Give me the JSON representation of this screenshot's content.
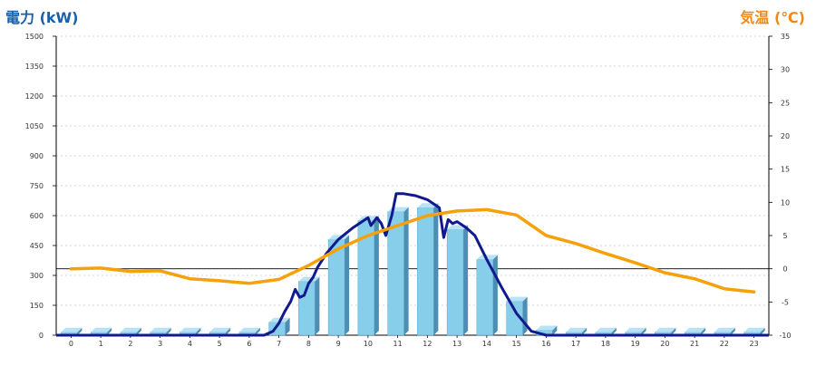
{
  "chart_data": {
    "type": "bar",
    "title": "",
    "y_left_label": "電力 (kW)",
    "y_right_label": "気温 (℃)",
    "categories": [
      "0",
      "1",
      "2",
      "3",
      "4",
      "5",
      "6",
      "7",
      "8",
      "9",
      "10",
      "11",
      "12",
      "13",
      "14",
      "15",
      "16",
      "17",
      "18",
      "19",
      "20",
      "21",
      "22",
      "23"
    ],
    "y_left_ticks": [
      "0",
      "150",
      "300",
      "450",
      "600",
      "750",
      "900",
      "1050",
      "1200",
      "1350",
      "1500"
    ],
    "y_right_ticks": [
      "-10",
      "-5",
      "0",
      "5",
      "10",
      "15",
      "20",
      "25",
      "30",
      "35"
    ],
    "y_left_range": [
      0,
      1500
    ],
    "y_right_range": [
      -10,
      35
    ],
    "grid": "horizontal-dashed",
    "series": [
      {
        "kind": "bar",
        "axis": "left",
        "color": "#87ceeb",
        "values": [
          15,
          15,
          15,
          15,
          15,
          15,
          15,
          65,
          270,
          480,
          575,
          620,
          640,
          530,
          380,
          170,
          25,
          15,
          15,
          15,
          15,
          15,
          15,
          15
        ]
      },
      {
        "kind": "line",
        "axis": "left",
        "color": "#101a8c",
        "x": [
          -0.5,
          6.5,
          6.8,
          7.0,
          7.2,
          7.4,
          7.55,
          7.7,
          7.85,
          8.0,
          8.15,
          8.3,
          8.6,
          9.0,
          9.5,
          10.0,
          10.1,
          10.3,
          10.45,
          10.6,
          10.8,
          10.95,
          11.2,
          11.6,
          12.0,
          12.4,
          12.55,
          12.7,
          12.85,
          13.0,
          13.3,
          13.6,
          14.0,
          14.5,
          15.0,
          15.5,
          16.0,
          23.5
        ],
        "values": [
          0,
          0,
          20,
          60,
          120,
          170,
          230,
          190,
          200,
          260,
          290,
          340,
          410,
          480,
          540,
          590,
          550,
          590,
          560,
          500,
          600,
          710,
          710,
          700,
          680,
          640,
          490,
          580,
          560,
          570,
          540,
          500,
          380,
          240,
          110,
          20,
          0,
          0
        ]
      },
      {
        "kind": "line",
        "axis": "right",
        "color": "#f5a10b",
        "values": [
          0.0,
          0.1,
          -0.4,
          -0.3,
          -1.5,
          -1.8,
          -2.2,
          -1.6,
          0.5,
          3.0,
          5.0,
          6.5,
          8.0,
          8.7,
          8.9,
          8.1,
          5.0,
          3.8,
          2.3,
          0.9,
          -0.6,
          -1.5,
          -3.0,
          -3.5
        ]
      }
    ]
  }
}
